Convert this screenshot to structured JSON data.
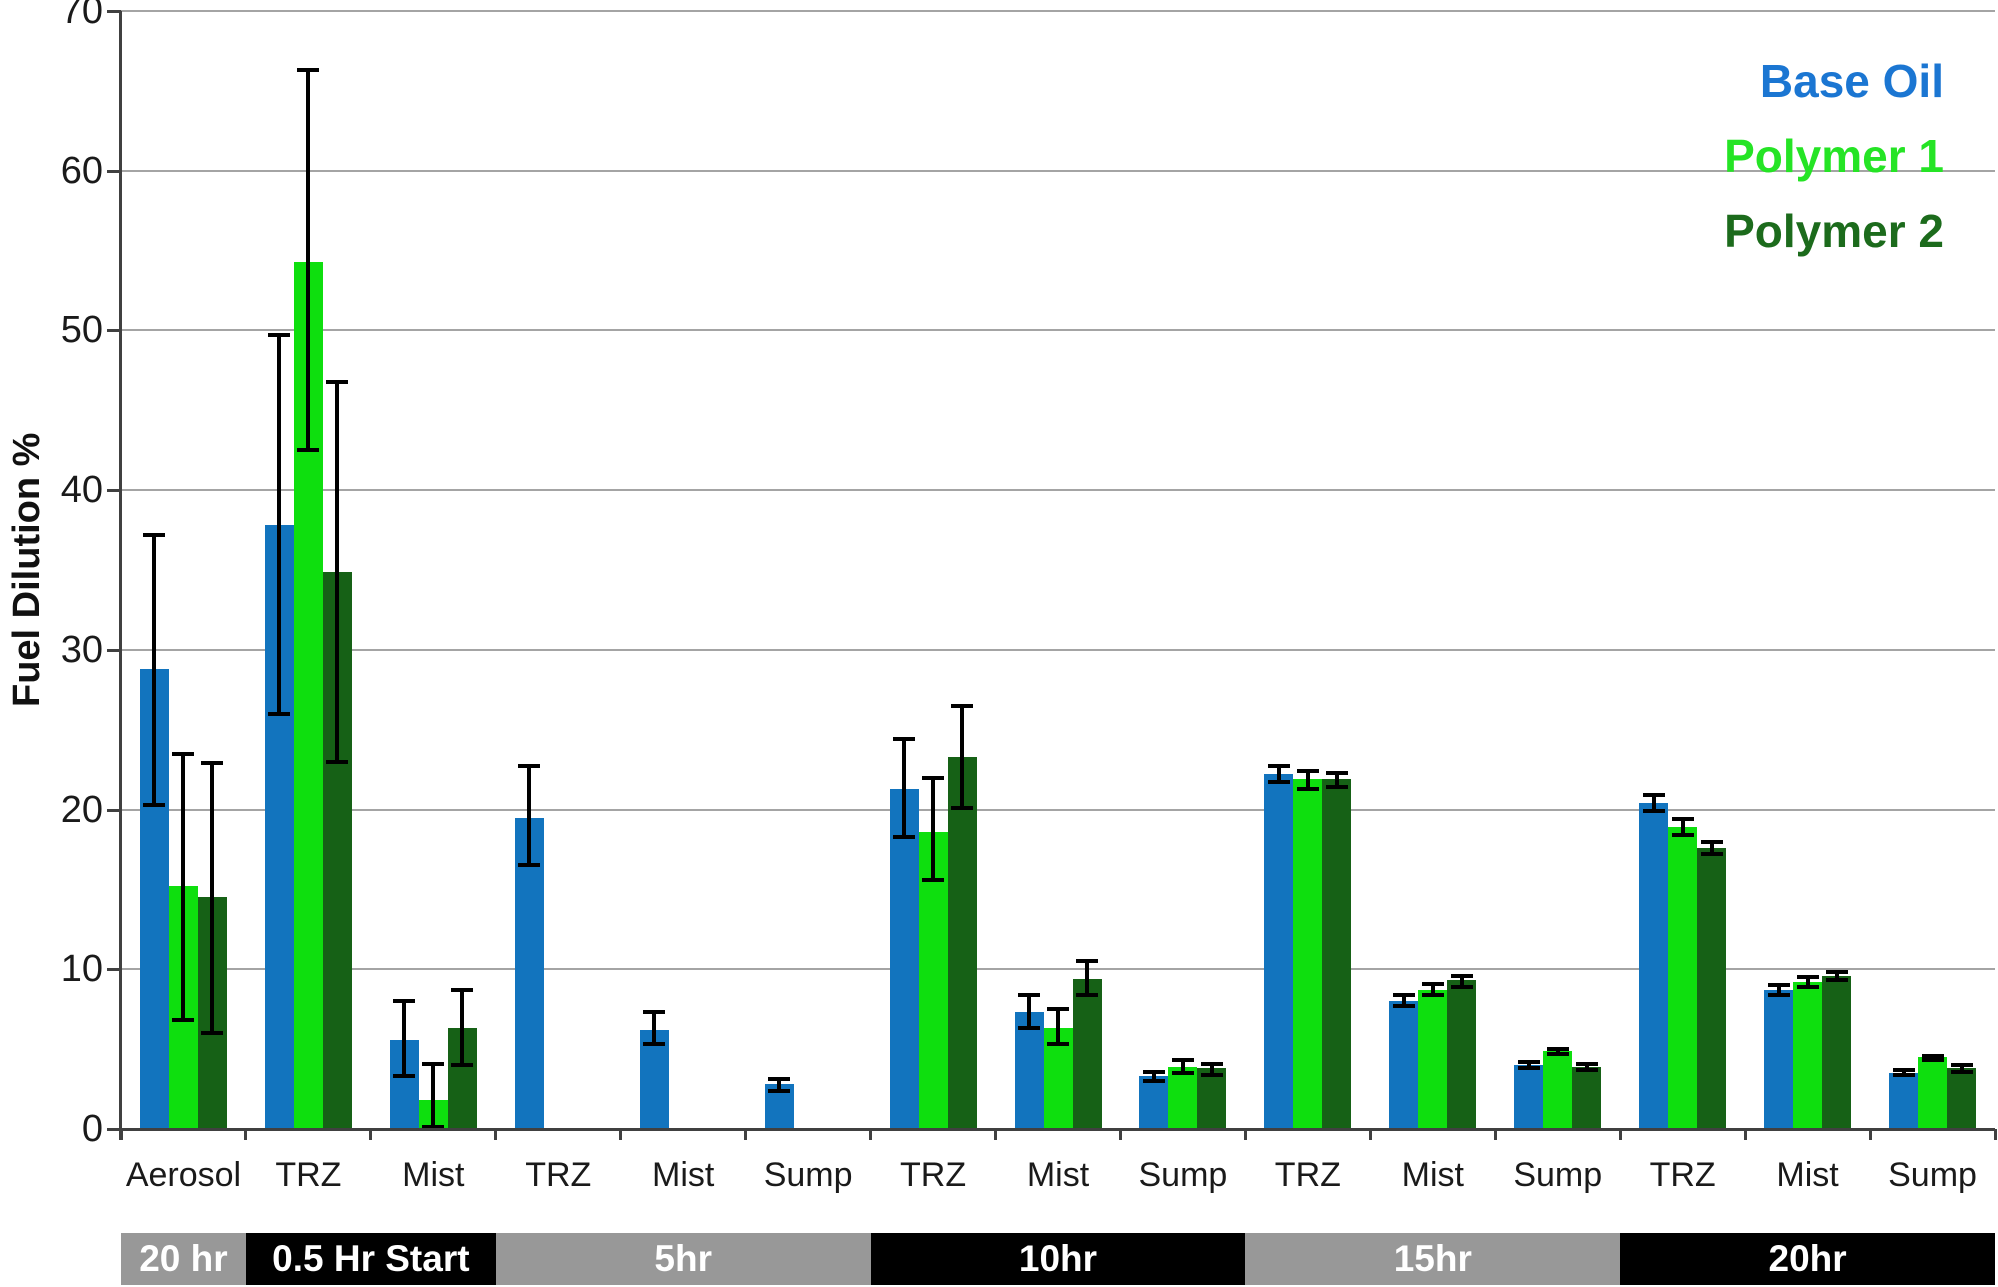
{
  "chart_data": {
    "type": "bar",
    "title": "",
    "ylabel": "Fuel Dilution %",
    "ylim": [
      0,
      70
    ],
    "ytick_step": 10,
    "grid": "horizontal",
    "legend_position": "top-right",
    "series": [
      {
        "name": "Base Oil",
        "color": "#1274BE",
        "legend_color": "#1B76D2"
      },
      {
        "name": "Polymer 1",
        "color": "#0EDF0E",
        "legend_color": "#25E425"
      },
      {
        "name": "Polymer 2",
        "color": "#166116",
        "legend_color": "#1C6B1C"
      }
    ],
    "groups": [
      {
        "category": "Aerosol",
        "band": "20 hr",
        "values": [
          {
            "v": 28.8,
            "lo": 20.3,
            "hi": 37.2
          },
          {
            "v": 15.2,
            "lo": 6.8,
            "hi": 23.5
          },
          {
            "v": 14.5,
            "lo": 6.0,
            "hi": 22.9
          }
        ]
      },
      {
        "category": "TRZ",
        "band": "0.5 Hr Start",
        "values": [
          {
            "v": 37.8,
            "lo": 26.0,
            "hi": 49.7
          },
          {
            "v": 54.3,
            "lo": 42.5,
            "hi": 66.3
          },
          {
            "v": 34.9,
            "lo": 23.0,
            "hi": 46.8
          }
        ]
      },
      {
        "category": "Mist",
        "band": "0.5 Hr Start",
        "values": [
          {
            "v": 5.6,
            "lo": 3.3,
            "hi": 8.0
          },
          {
            "v": 1.8,
            "lo": 0.1,
            "hi": 4.1
          },
          {
            "v": 6.3,
            "lo": 4.0,
            "hi": 8.7
          }
        ]
      },
      {
        "category": "TRZ",
        "band": "5hr",
        "values": [
          {
            "v": 19.5,
            "lo": 16.5,
            "hi": 22.7
          },
          null,
          null
        ]
      },
      {
        "category": "Mist",
        "band": "5hr",
        "values": [
          {
            "v": 6.2,
            "lo": 5.3,
            "hi": 7.3
          },
          null,
          null
        ]
      },
      {
        "category": "Sump",
        "band": "5hr",
        "values": [
          {
            "v": 2.8,
            "lo": 2.4,
            "hi": 3.1
          },
          null,
          null
        ]
      },
      {
        "category": "TRZ",
        "band": "10hr",
        "values": [
          {
            "v": 21.3,
            "lo": 18.3,
            "hi": 24.4
          },
          {
            "v": 18.6,
            "lo": 15.6,
            "hi": 22.0
          },
          {
            "v": 23.3,
            "lo": 20.1,
            "hi": 26.5
          }
        ]
      },
      {
        "category": "Mist",
        "band": "10hr",
        "values": [
          {
            "v": 7.3,
            "lo": 6.3,
            "hi": 8.4
          },
          {
            "v": 6.3,
            "lo": 5.3,
            "hi": 7.5
          },
          {
            "v": 9.4,
            "lo": 8.4,
            "hi": 10.5
          }
        ]
      },
      {
        "category": "Sump",
        "band": "10hr",
        "values": [
          {
            "v": 3.3,
            "lo": 3.0,
            "hi": 3.6
          },
          {
            "v": 3.9,
            "lo": 3.5,
            "hi": 4.3
          },
          {
            "v": 3.8,
            "lo": 3.4,
            "hi": 4.1
          }
        ]
      },
      {
        "category": "TRZ",
        "band": "15hr",
        "values": [
          {
            "v": 22.2,
            "lo": 21.7,
            "hi": 22.7
          },
          {
            "v": 21.9,
            "lo": 21.3,
            "hi": 22.4
          },
          {
            "v": 21.9,
            "lo": 21.4,
            "hi": 22.3
          }
        ]
      },
      {
        "category": "Mist",
        "band": "15hr",
        "values": [
          {
            "v": 8.0,
            "lo": 7.7,
            "hi": 8.4
          },
          {
            "v": 8.7,
            "lo": 8.4,
            "hi": 9.1
          },
          {
            "v": 9.3,
            "lo": 8.9,
            "hi": 9.6
          }
        ]
      },
      {
        "category": "Sump",
        "band": "15hr",
        "values": [
          {
            "v": 4.0,
            "lo": 3.8,
            "hi": 4.2
          },
          {
            "v": 4.9,
            "lo": 4.7,
            "hi": 5.0
          },
          {
            "v": 3.9,
            "lo": 3.7,
            "hi": 4.1
          }
        ]
      },
      {
        "category": "TRZ",
        "band": "20hr",
        "values": [
          {
            "v": 20.4,
            "lo": 19.9,
            "hi": 20.9
          },
          {
            "v": 18.9,
            "lo": 18.4,
            "hi": 19.4
          },
          {
            "v": 17.6,
            "lo": 17.2,
            "hi": 18.0
          }
        ]
      },
      {
        "category": "Mist",
        "band": "20hr",
        "values": [
          {
            "v": 8.7,
            "lo": 8.4,
            "hi": 9.0
          },
          {
            "v": 9.2,
            "lo": 8.9,
            "hi": 9.5
          },
          {
            "v": 9.6,
            "lo": 9.3,
            "hi": 9.8
          }
        ]
      },
      {
        "category": "Sump",
        "band": "20hr",
        "values": [
          {
            "v": 3.5,
            "lo": 3.4,
            "hi": 3.7
          },
          {
            "v": 4.5,
            "lo": 4.3,
            "hi": 4.6
          },
          {
            "v": 3.8,
            "lo": 3.6,
            "hi": 4.0
          }
        ]
      }
    ],
    "bands": [
      {
        "label": "20 hr",
        "slots": 1,
        "color": "#989898"
      },
      {
        "label": "0.5 Hr Start",
        "slots": 2,
        "color": "#000000"
      },
      {
        "label": "5hr",
        "slots": 3,
        "color": "#989898"
      },
      {
        "label": "10hr",
        "slots": 3,
        "color": "#000000"
      },
      {
        "label": "15hr",
        "slots": 3,
        "color": "#989898"
      },
      {
        "label": "20hr",
        "slots": 3,
        "color": "#000000"
      }
    ],
    "colors": {
      "gridline": "#A4A4A4",
      "axis": "#404040",
      "error_bar": "#000000",
      "band_text": "#FFFFFF",
      "background": "#FFFFFF"
    }
  }
}
